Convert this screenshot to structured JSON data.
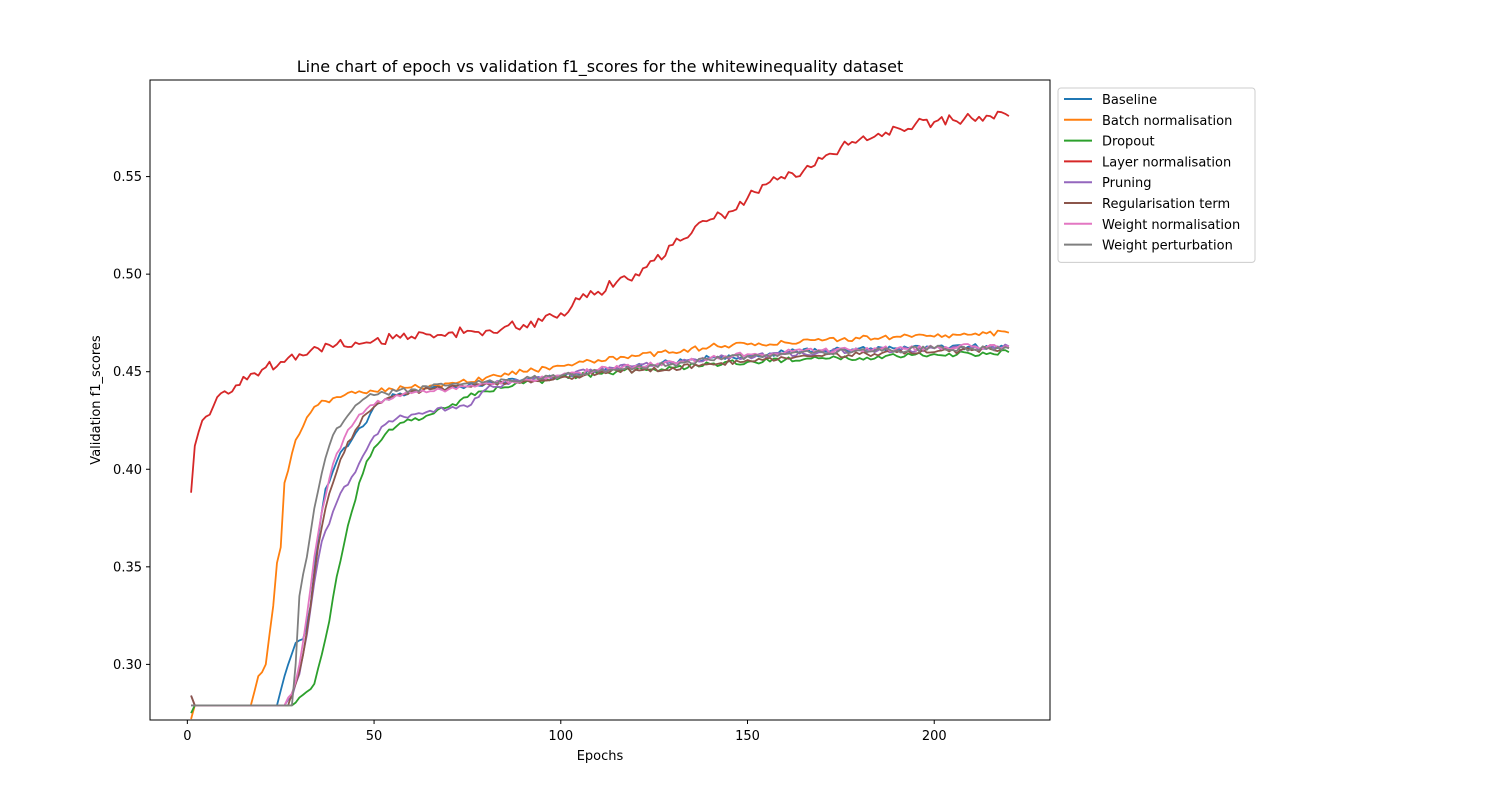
{
  "chart_data": {
    "type": "line",
    "title": "Line chart of epoch vs validation f1_scores for the whitewinequality dataset",
    "xlabel": "Epochs",
    "ylabel": "Validation f1_scores",
    "xlim": [
      -10,
      231
    ],
    "ylim": [
      0.2715,
      0.5995
    ],
    "xticks": [
      0,
      50,
      100,
      150,
      200
    ],
    "xtick_labels": [
      "0",
      "50",
      "100",
      "150",
      "200"
    ],
    "yticks": [
      0.3,
      0.35,
      0.4,
      0.45,
      0.5,
      0.55
    ],
    "ytick_labels": [
      "0.30",
      "0.35",
      "0.40",
      "0.45",
      "0.50",
      "0.55"
    ],
    "grid": false,
    "legend_position": "upper right, outside the plot area",
    "series": [
      {
        "name": "Baseline",
        "color": "#1f77b4",
        "points": [
          [
            1,
            0.279
          ],
          [
            24,
            0.279
          ],
          [
            27,
            0.3
          ],
          [
            29,
            0.311
          ],
          [
            31,
            0.313
          ],
          [
            33,
            0.33
          ],
          [
            35,
            0.365
          ],
          [
            37,
            0.39
          ],
          [
            40,
            0.404
          ],
          [
            42,
            0.411
          ],
          [
            44,
            0.415
          ],
          [
            46,
            0.421
          ],
          [
            48,
            0.424
          ],
          [
            50,
            0.432
          ],
          [
            53,
            0.436
          ],
          [
            56,
            0.438
          ],
          [
            60,
            0.44
          ],
          [
            65,
            0.441
          ],
          [
            70,
            0.442
          ],
          [
            80,
            0.444
          ],
          [
            90,
            0.446
          ],
          [
            100,
            0.448
          ],
          [
            110,
            0.45
          ],
          [
            120,
            0.453
          ],
          [
            130,
            0.455
          ],
          [
            140,
            0.457
          ],
          [
            150,
            0.458
          ],
          [
            160,
            0.46
          ],
          [
            170,
            0.461
          ],
          [
            180,
            0.462
          ],
          [
            190,
            0.462
          ],
          [
            200,
            0.462
          ],
          [
            210,
            0.463
          ],
          [
            220,
            0.463
          ]
        ]
      },
      {
        "name": "Batch normalisation",
        "color": "#ff7f0e",
        "points": [
          [
            1,
            0.272
          ],
          [
            2,
            0.279
          ],
          [
            17,
            0.279
          ],
          [
            19,
            0.294
          ],
          [
            21,
            0.3
          ],
          [
            23,
            0.33
          ],
          [
            24,
            0.352
          ],
          [
            25,
            0.36
          ],
          [
            26,
            0.393
          ],
          [
            28,
            0.408
          ],
          [
            29,
            0.415
          ],
          [
            31,
            0.422
          ],
          [
            33,
            0.429
          ],
          [
            35,
            0.433
          ],
          [
            37,
            0.435
          ],
          [
            40,
            0.437
          ],
          [
            45,
            0.439
          ],
          [
            50,
            0.44
          ],
          [
            55,
            0.441
          ],
          [
            60,
            0.442
          ],
          [
            70,
            0.444
          ],
          [
            80,
            0.447
          ],
          [
            90,
            0.45
          ],
          [
            100,
            0.453
          ],
          [
            110,
            0.456
          ],
          [
            120,
            0.458
          ],
          [
            130,
            0.46
          ],
          [
            140,
            0.463
          ],
          [
            150,
            0.464
          ],
          [
            160,
            0.465
          ],
          [
            170,
            0.466
          ],
          [
            180,
            0.467
          ],
          [
            190,
            0.468
          ],
          [
            200,
            0.468
          ],
          [
            210,
            0.469
          ],
          [
            220,
            0.47
          ]
        ]
      },
      {
        "name": "Dropout",
        "color": "#2ca02c",
        "points": [
          [
            1,
            0.275
          ],
          [
            2,
            0.279
          ],
          [
            28,
            0.279
          ],
          [
            30,
            0.283
          ],
          [
            32,
            0.286
          ],
          [
            34,
            0.29
          ],
          [
            36,
            0.305
          ],
          [
            38,
            0.322
          ],
          [
            40,
            0.345
          ],
          [
            42,
            0.362
          ],
          [
            44,
            0.378
          ],
          [
            46,
            0.393
          ],
          [
            48,
            0.404
          ],
          [
            50,
            0.411
          ],
          [
            53,
            0.418
          ],
          [
            56,
            0.422
          ],
          [
            60,
            0.425
          ],
          [
            65,
            0.428
          ],
          [
            70,
            0.432
          ],
          [
            75,
            0.437
          ],
          [
            80,
            0.44
          ],
          [
            85,
            0.442
          ],
          [
            90,
            0.444
          ],
          [
            100,
            0.447
          ],
          [
            110,
            0.449
          ],
          [
            120,
            0.451
          ],
          [
            130,
            0.452
          ],
          [
            140,
            0.454
          ],
          [
            150,
            0.455
          ],
          [
            160,
            0.456
          ],
          [
            170,
            0.457
          ],
          [
            180,
            0.457
          ],
          [
            190,
            0.458
          ],
          [
            200,
            0.459
          ],
          [
            210,
            0.459
          ],
          [
            220,
            0.46
          ]
        ]
      },
      {
        "name": "Layer normalisation",
        "color": "#d62728",
        "points": [
          [
            1,
            0.388
          ],
          [
            2,
            0.412
          ],
          [
            3,
            0.419
          ],
          [
            4,
            0.425
          ],
          [
            6,
            0.428
          ],
          [
            8,
            0.437
          ],
          [
            10,
            0.44
          ],
          [
            13,
            0.443
          ],
          [
            16,
            0.446
          ],
          [
            20,
            0.451
          ],
          [
            25,
            0.455
          ],
          [
            30,
            0.459
          ],
          [
            35,
            0.462
          ],
          [
            40,
            0.464
          ],
          [
            45,
            0.465
          ],
          [
            50,
            0.466
          ],
          [
            55,
            0.467
          ],
          [
            60,
            0.468
          ],
          [
            65,
            0.469
          ],
          [
            70,
            0.47
          ],
          [
            75,
            0.471
          ],
          [
            80,
            0.471
          ],
          [
            85,
            0.473
          ],
          [
            90,
            0.474
          ],
          [
            95,
            0.476
          ],
          [
            100,
            0.48
          ],
          [
            105,
            0.487
          ],
          [
            110,
            0.491
          ],
          [
            115,
            0.496
          ],
          [
            120,
            0.5
          ],
          [
            125,
            0.507
          ],
          [
            130,
            0.515
          ],
          [
            135,
            0.521
          ],
          [
            140,
            0.528
          ],
          [
            145,
            0.532
          ],
          [
            150,
            0.539
          ],
          [
            155,
            0.546
          ],
          [
            160,
            0.549
          ],
          [
            165,
            0.553
          ],
          [
            170,
            0.559
          ],
          [
            175,
            0.565
          ],
          [
            180,
            0.569
          ],
          [
            185,
            0.572
          ],
          [
            190,
            0.575
          ],
          [
            195,
            0.577
          ],
          [
            200,
            0.578
          ],
          [
            205,
            0.579
          ],
          [
            210,
            0.58
          ],
          [
            215,
            0.581
          ],
          [
            218,
            0.583
          ],
          [
            220,
            0.581
          ]
        ]
      },
      {
        "name": "Pruning",
        "color": "#9467bd",
        "points": [
          [
            1,
            0.284
          ],
          [
            2,
            0.279
          ],
          [
            26,
            0.279
          ],
          [
            28,
            0.283
          ],
          [
            30,
            0.295
          ],
          [
            32,
            0.315
          ],
          [
            34,
            0.342
          ],
          [
            36,
            0.363
          ],
          [
            38,
            0.372
          ],
          [
            40,
            0.383
          ],
          [
            42,
            0.391
          ],
          [
            44,
            0.396
          ],
          [
            46,
            0.403
          ],
          [
            48,
            0.41
          ],
          [
            50,
            0.417
          ],
          [
            53,
            0.423
          ],
          [
            56,
            0.426
          ],
          [
            60,
            0.428
          ],
          [
            65,
            0.43
          ],
          [
            70,
            0.431
          ],
          [
            75,
            0.432
          ],
          [
            78,
            0.437
          ],
          [
            80,
            0.441
          ],
          [
            85,
            0.444
          ],
          [
            90,
            0.445
          ],
          [
            100,
            0.448
          ],
          [
            110,
            0.451
          ],
          [
            120,
            0.453
          ],
          [
            130,
            0.455
          ],
          [
            140,
            0.457
          ],
          [
            150,
            0.458
          ],
          [
            160,
            0.459
          ],
          [
            170,
            0.46
          ],
          [
            180,
            0.461
          ],
          [
            190,
            0.461
          ],
          [
            200,
            0.462
          ],
          [
            210,
            0.462
          ],
          [
            220,
            0.463
          ]
        ]
      },
      {
        "name": "Regularisation term",
        "color": "#8c564b",
        "points": [
          [
            1,
            0.284
          ],
          [
            2,
            0.279
          ],
          [
            27,
            0.279
          ],
          [
            29,
            0.29
          ],
          [
            31,
            0.305
          ],
          [
            33,
            0.33
          ],
          [
            35,
            0.36
          ],
          [
            37,
            0.38
          ],
          [
            39,
            0.393
          ],
          [
            41,
            0.405
          ],
          [
            43,
            0.414
          ],
          [
            45,
            0.42
          ],
          [
            47,
            0.427
          ],
          [
            50,
            0.432
          ],
          [
            53,
            0.436
          ],
          [
            56,
            0.438
          ],
          [
            60,
            0.44
          ],
          [
            65,
            0.441
          ],
          [
            70,
            0.442
          ],
          [
            80,
            0.444
          ],
          [
            90,
            0.445
          ],
          [
            100,
            0.447
          ],
          [
            110,
            0.449
          ],
          [
            120,
            0.451
          ],
          [
            130,
            0.452
          ],
          [
            140,
            0.454
          ],
          [
            150,
            0.456
          ],
          [
            160,
            0.457
          ],
          [
            170,
            0.458
          ],
          [
            180,
            0.459
          ],
          [
            190,
            0.46
          ],
          [
            200,
            0.46
          ],
          [
            210,
            0.461
          ],
          [
            220,
            0.462
          ]
        ]
      },
      {
        "name": "Weight normalisation",
        "color": "#e377c2",
        "points": [
          [
            1,
            0.279
          ],
          [
            26,
            0.279
          ],
          [
            28,
            0.285
          ],
          [
            30,
            0.3
          ],
          [
            32,
            0.325
          ],
          [
            34,
            0.355
          ],
          [
            36,
            0.378
          ],
          [
            38,
            0.395
          ],
          [
            40,
            0.408
          ],
          [
            42,
            0.416
          ],
          [
            44,
            0.422
          ],
          [
            46,
            0.428
          ],
          [
            48,
            0.431
          ],
          [
            50,
            0.433
          ],
          [
            53,
            0.436
          ],
          [
            56,
            0.438
          ],
          [
            60,
            0.439
          ],
          [
            65,
            0.44
          ],
          [
            70,
            0.441
          ],
          [
            80,
            0.444
          ],
          [
            90,
            0.446
          ],
          [
            100,
            0.448
          ],
          [
            110,
            0.451
          ],
          [
            120,
            0.453
          ],
          [
            130,
            0.455
          ],
          [
            140,
            0.457
          ],
          [
            150,
            0.459
          ],
          [
            160,
            0.46
          ],
          [
            170,
            0.461
          ],
          [
            180,
            0.461
          ],
          [
            190,
            0.462
          ],
          [
            200,
            0.462
          ],
          [
            210,
            0.463
          ],
          [
            220,
            0.463
          ]
        ]
      },
      {
        "name": "Weight perturbation",
        "color": "#7f7f7f",
        "points": [
          [
            1,
            0.279
          ],
          [
            28,
            0.279
          ],
          [
            29,
            0.3
          ],
          [
            30,
            0.335
          ],
          [
            32,
            0.355
          ],
          [
            34,
            0.38
          ],
          [
            36,
            0.398
          ],
          [
            38,
            0.412
          ],
          [
            40,
            0.421
          ],
          [
            42,
            0.425
          ],
          [
            44,
            0.43
          ],
          [
            46,
            0.434
          ],
          [
            48,
            0.437
          ],
          [
            50,
            0.438
          ],
          [
            53,
            0.439
          ],
          [
            56,
            0.44
          ],
          [
            60,
            0.441
          ],
          [
            65,
            0.442
          ],
          [
            70,
            0.443
          ],
          [
            80,
            0.445
          ],
          [
            90,
            0.446
          ],
          [
            100,
            0.448
          ],
          [
            110,
            0.45
          ],
          [
            120,
            0.452
          ],
          [
            130,
            0.454
          ],
          [
            140,
            0.456
          ],
          [
            150,
            0.458
          ],
          [
            160,
            0.459
          ],
          [
            170,
            0.46
          ],
          [
            180,
            0.461
          ],
          [
            190,
            0.461
          ],
          [
            200,
            0.462
          ],
          [
            210,
            0.462
          ],
          [
            220,
            0.462
          ]
        ]
      }
    ]
  }
}
